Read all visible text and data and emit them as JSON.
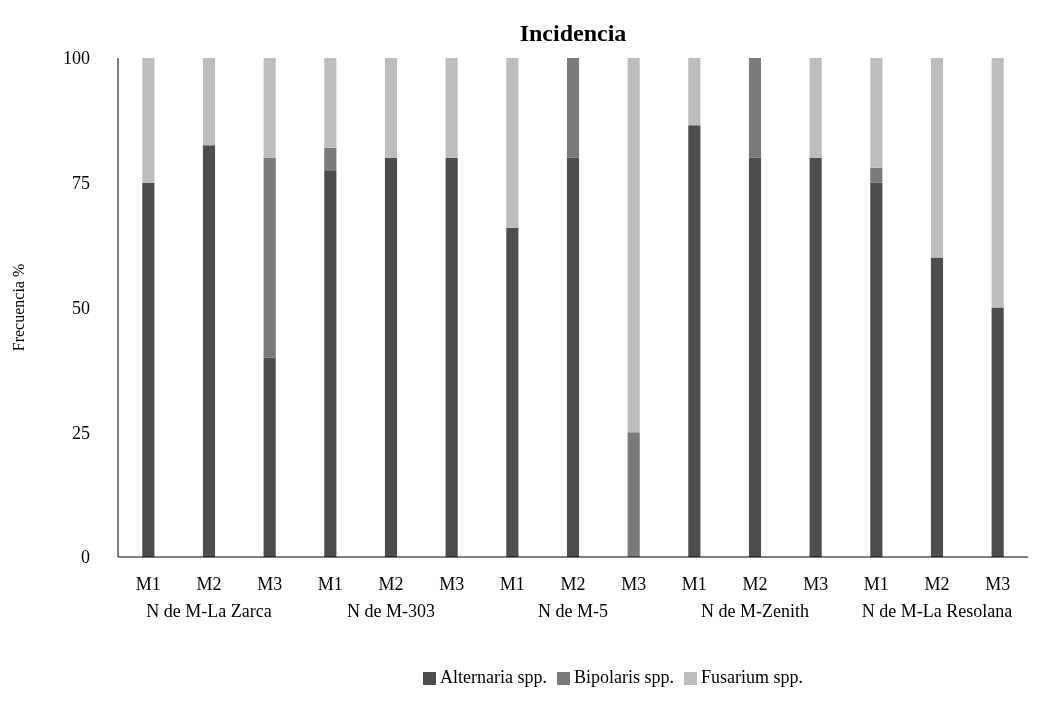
{
  "chart_data": {
    "type": "bar",
    "title": "Incidencia",
    "ylabel": "Frecuencia %",
    "stacked": true,
    "categories": [
      "M1",
      "M2",
      "M3",
      "M1",
      "M2",
      "M3",
      "M1",
      "M2",
      "M3",
      "M1",
      "M2",
      "M3",
      "M1",
      "M2",
      "M3"
    ],
    "series": [
      {
        "name": "Alternaria spp.",
        "color": "#4d4d4d",
        "values": [
          75,
          82.5,
          40,
          77.5,
          80,
          80,
          66,
          80,
          0,
          86.5,
          80,
          80,
          75,
          60,
          50
        ]
      },
      {
        "name": "Bipolaris spp.",
        "color": "#7a7a7a",
        "values": [
          0,
          0,
          40,
          4.5,
          0,
          0,
          0,
          20,
          25,
          0,
          20,
          0,
          3,
          0,
          0
        ]
      },
      {
        "name": "Fusarium spp.",
        "color": "#bdbdbd",
        "values": [
          25,
          17.5,
          20,
          18,
          20,
          20,
          34,
          0,
          75,
          13.5,
          0,
          20,
          22,
          40,
          50
        ]
      }
    ],
    "annotations": [
      "N de M-La Zarca",
      "N de M-303",
      "N de M-5",
      "N de M-Zenith",
      "N de M-La Resolana"
    ],
    "ylim": [
      0,
      100
    ],
    "yticks": [
      0,
      25,
      50,
      75,
      100
    ],
    "grid": false,
    "legend": "bottom"
  }
}
